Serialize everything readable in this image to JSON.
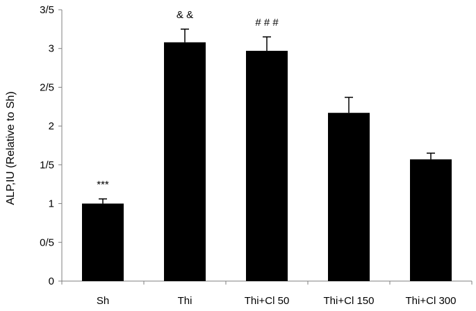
{
  "chart_data": {
    "type": "bar",
    "title": "",
    "xlabel": "",
    "ylabel": "ALP,IU (Relative to Sh)",
    "categories": [
      "Sh",
      "Thi",
      "Thi+Cl 50",
      "Thi+Cl 150",
      "Thi+Cl 300"
    ],
    "values": [
      1.0,
      3.08,
      2.97,
      2.17,
      1.57
    ],
    "errors": [
      0.06,
      0.17,
      0.18,
      0.2,
      0.08
    ],
    "annotations": [
      "***",
      "& &",
      "# # #",
      "",
      ""
    ],
    "ylim": [
      0,
      3.5
    ],
    "yticks": [
      0,
      0.5,
      1,
      1.5,
      2,
      2.5,
      3,
      3.5
    ],
    "ytick_labels": [
      "0",
      "0/5",
      "1",
      "1/5",
      "2",
      "2/5",
      "3",
      "3/5"
    ],
    "bar_color": "#000000",
    "grid": false,
    "legend": "none"
  }
}
